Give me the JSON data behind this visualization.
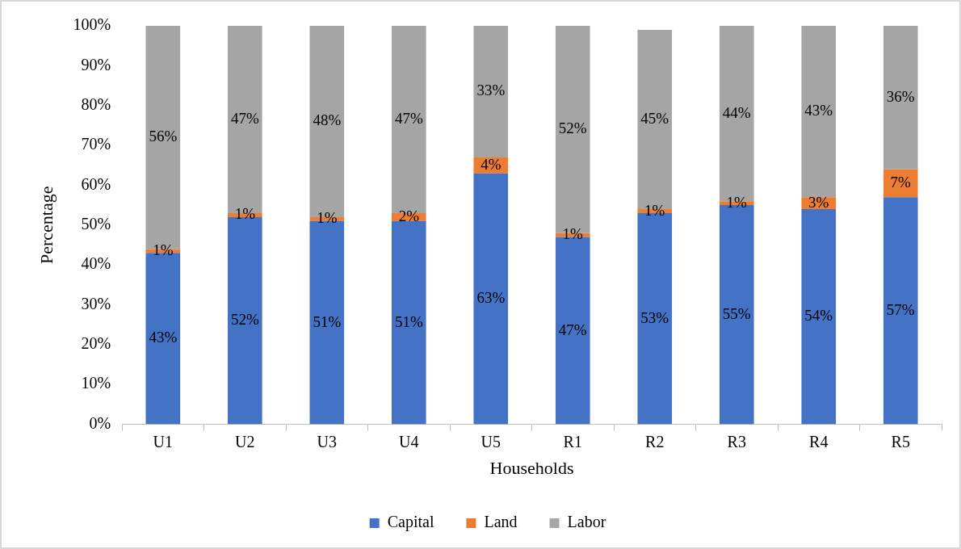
{
  "chart_data": {
    "type": "bar",
    "stacked": true,
    "xlabel": "Households",
    "ylabel": "Percentage",
    "categories": [
      "U1",
      "U2",
      "U3",
      "U4",
      "U5",
      "R1",
      "R2",
      "R3",
      "R4",
      "R5"
    ],
    "series": [
      {
        "name": "Capital",
        "color": "#4472c4",
        "values": [
          43,
          52,
          51,
          51,
          63,
          47,
          53,
          55,
          54,
          57
        ],
        "value_labels": [
          "43%",
          "52%",
          "51%",
          "51%",
          "63%",
          "47%",
          "53%",
          "55%",
          "54%",
          "57%"
        ]
      },
      {
        "name": "Land",
        "color": "#ed7d31",
        "values": [
          1,
          1,
          1,
          2,
          4,
          1,
          1,
          1,
          3,
          7
        ],
        "value_labels": [
          "1%",
          "1%",
          "1%",
          "2%",
          "4%",
          "1%",
          "1%",
          "1%",
          "3%",
          "7%"
        ]
      },
      {
        "name": "Labor",
        "color": "#a5a5a5",
        "values": [
          56,
          47,
          48,
          47,
          33,
          52,
          45,
          44,
          43,
          36
        ],
        "value_labels": [
          "56%",
          "47%",
          "48%",
          "47%",
          "33%",
          "52%",
          "45%",
          "44%",
          "43%",
          "36%"
        ]
      }
    ],
    "ylim": [
      0,
      100
    ],
    "yticks": [
      {
        "value": 0,
        "label": "0%"
      },
      {
        "value": 10,
        "label": "10%"
      },
      {
        "value": 20,
        "label": "20%"
      },
      {
        "value": 30,
        "label": "30%"
      },
      {
        "value": 40,
        "label": "40%"
      },
      {
        "value": 50,
        "label": "50%"
      },
      {
        "value": 60,
        "label": "60%"
      },
      {
        "value": 70,
        "label": "70%"
      },
      {
        "value": 80,
        "label": "80%"
      },
      {
        "value": 90,
        "label": "90%"
      },
      {
        "value": 100,
        "label": "100%"
      }
    ],
    "legend": "bottom"
  }
}
